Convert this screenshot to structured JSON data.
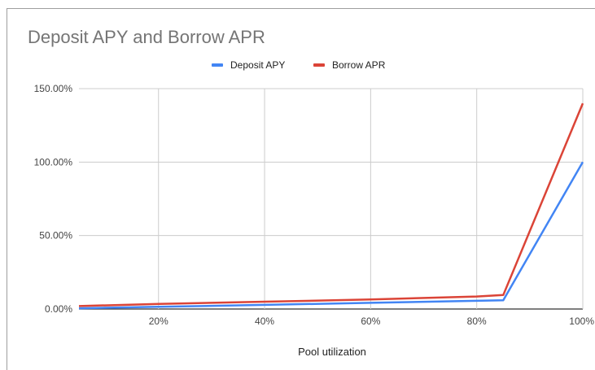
{
  "chart_data": {
    "type": "line",
    "title": "Deposit APY and Borrow APR",
    "xlabel": "Pool utilization",
    "ylabel": "",
    "legend_position": "top",
    "grid": true,
    "x": [
      5,
      20,
      40,
      60,
      80,
      85,
      100
    ],
    "xlim": [
      5,
      100
    ],
    "ylim": [
      0,
      150
    ],
    "x_ticks": [
      20,
      40,
      60,
      80,
      100
    ],
    "x_tick_labels": [
      "20%",
      "40%",
      "60%",
      "80%",
      "100%"
    ],
    "y_ticks": [
      0,
      50,
      100,
      150
    ],
    "y_tick_labels": [
      "0.00%",
      "50.00%",
      "100.00%",
      "150.00%"
    ],
    "series": [
      {
        "name": "Deposit APY",
        "color": "#4285f4",
        "values": [
          0.5,
          1.5,
          2.8,
          4.2,
          5.6,
          6,
          100
        ]
      },
      {
        "name": "Borrow APR",
        "color": "#db4437",
        "values": [
          2,
          3.5,
          5,
          6.5,
          8.5,
          9.5,
          140
        ]
      }
    ]
  }
}
